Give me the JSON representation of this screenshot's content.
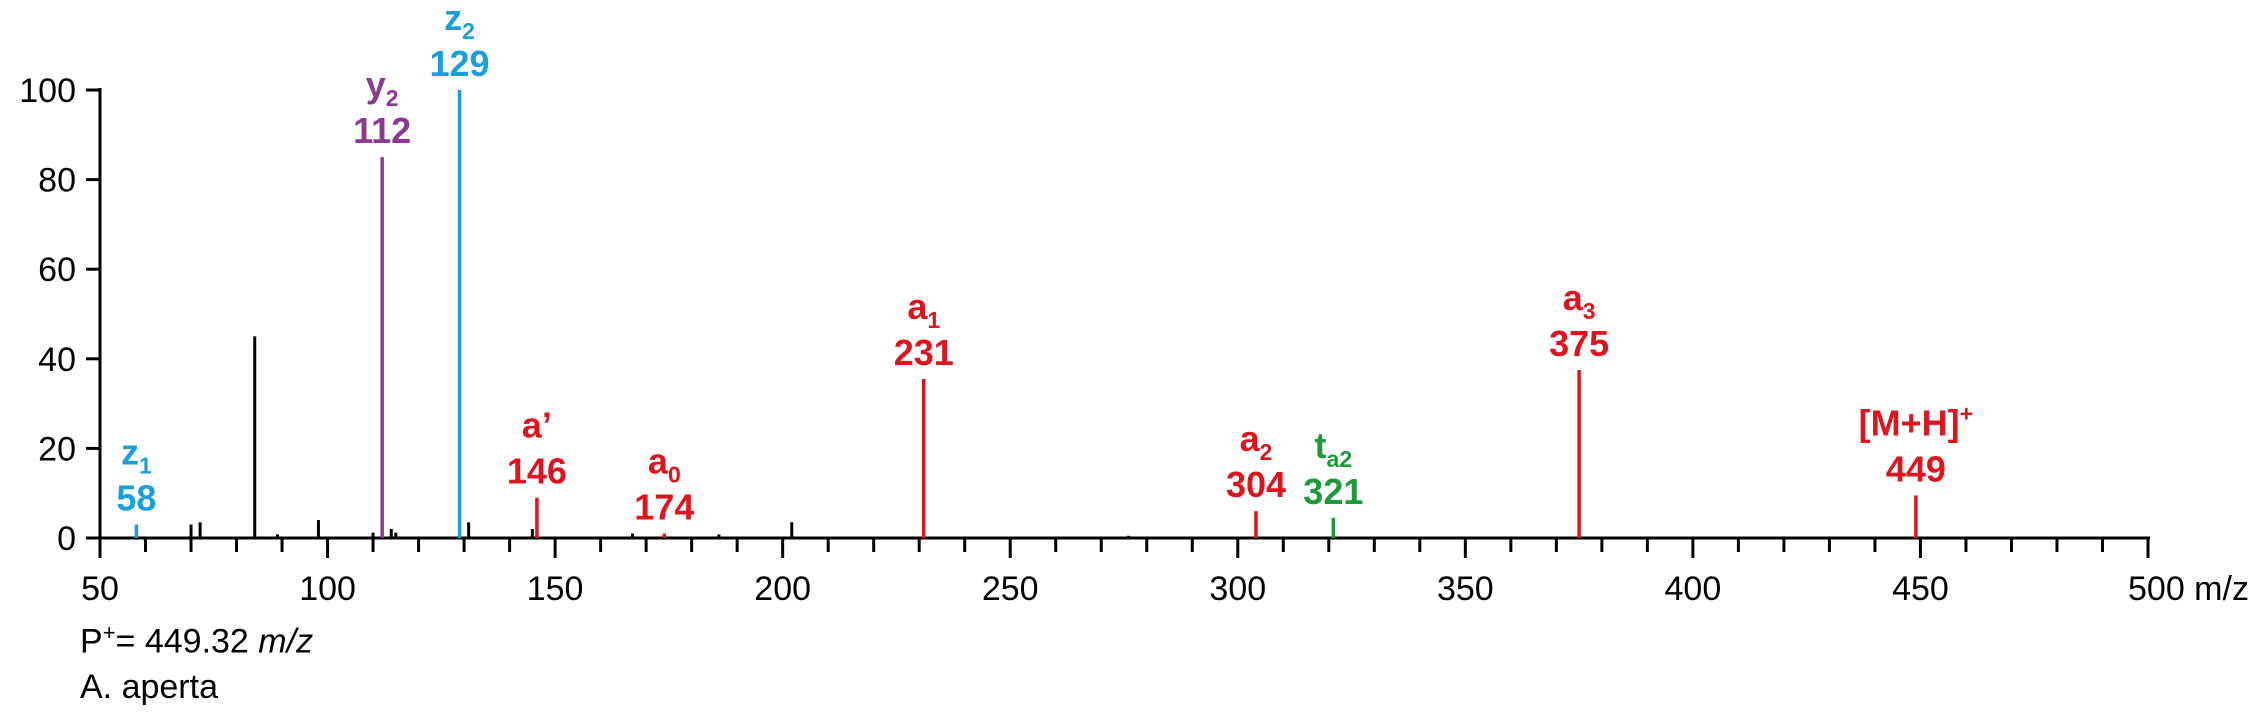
{
  "chart_data": {
    "type": "bar",
    "x_unit": "m/z",
    "xlim": [
      50,
      500
    ],
    "ylim": [
      0,
      100
    ],
    "x_ticks": [
      50,
      100,
      150,
      200,
      250,
      300,
      350,
      400,
      450,
      500
    ],
    "x_tick_labels": [
      "50",
      "100",
      "150",
      "200",
      "250",
      "300",
      "350",
      "400",
      "450",
      "500 m/z"
    ],
    "y_ticks": [
      0,
      20,
      40,
      60,
      80,
      100
    ],
    "y_tick_labels": [
      "0",
      "20",
      "40",
      "60",
      "80",
      "100"
    ],
    "colors": {
      "z": "#1a9fdb",
      "y": "#8a3a8f",
      "a": "#e0141e",
      "t": "#1e9a3c",
      "unlabeled": "#000000"
    },
    "labeled_peaks": [
      {
        "x": 58,
        "intensity": 3,
        "ion": "z",
        "sub": "1",
        "sup": "",
        "value": "58",
        "color": "#1a9fdb"
      },
      {
        "x": 112,
        "intensity": 85,
        "ion": "y",
        "sub": "2",
        "sup": "",
        "value": "112",
        "color": "#8a3a8f"
      },
      {
        "x": 129,
        "intensity": 100,
        "ion": "z",
        "sub": "2",
        "sup": "",
        "value": "129",
        "color": "#1a9fdb"
      },
      {
        "x": 146,
        "intensity": 9,
        "ion": "a’",
        "sub": "",
        "sup": "",
        "value": "146",
        "color": "#e0141e"
      },
      {
        "x": 174,
        "intensity": 1,
        "ion": "a",
        "sub": "0",
        "sup": "",
        "value": "174",
        "color": "#e0141e"
      },
      {
        "x": 231,
        "intensity": 35.5,
        "ion": "a",
        "sub": "1",
        "sup": "",
        "value": "231",
        "color": "#e0141e"
      },
      {
        "x": 304,
        "intensity": 6,
        "ion": "a",
        "sub": "2",
        "sup": "",
        "value": "304",
        "color": "#e0141e"
      },
      {
        "x": 321,
        "intensity": 4.5,
        "ion": "t",
        "sub": "a2",
        "sup": "",
        "value": "321",
        "color": "#1e9a3c"
      },
      {
        "x": 375,
        "intensity": 37.5,
        "ion": "a",
        "sub": "3",
        "sup": "",
        "value": "375",
        "color": "#e0141e"
      },
      {
        "x": 449,
        "intensity": 9.5,
        "ion": "[M+H]",
        "sub": "",
        "sup": "+",
        "value": "449",
        "color": "#e0141e"
      }
    ],
    "unlabeled_peaks": [
      {
        "x": 70,
        "intensity": 3
      },
      {
        "x": 72,
        "intensity": 3.5
      },
      {
        "x": 84,
        "intensity": 45
      },
      {
        "x": 89,
        "intensity": 0.8
      },
      {
        "x": 98,
        "intensity": 4
      },
      {
        "x": 110,
        "intensity": 1.2
      },
      {
        "x": 114,
        "intensity": 2
      },
      {
        "x": 115,
        "intensity": 1.2
      },
      {
        "x": 131,
        "intensity": 3.5
      },
      {
        "x": 145,
        "intensity": 2
      },
      {
        "x": 167,
        "intensity": 1
      },
      {
        "x": 186,
        "intensity": 0.8
      },
      {
        "x": 202,
        "intensity": 3.5
      },
      {
        "x": 276,
        "intensity": 0.5
      }
    ]
  },
  "footer": {
    "precursor_label": "P",
    "precursor_sup": "+",
    "precursor_value": "= 449.32 ",
    "precursor_unit": "m/z",
    "species": "A. aperta"
  }
}
